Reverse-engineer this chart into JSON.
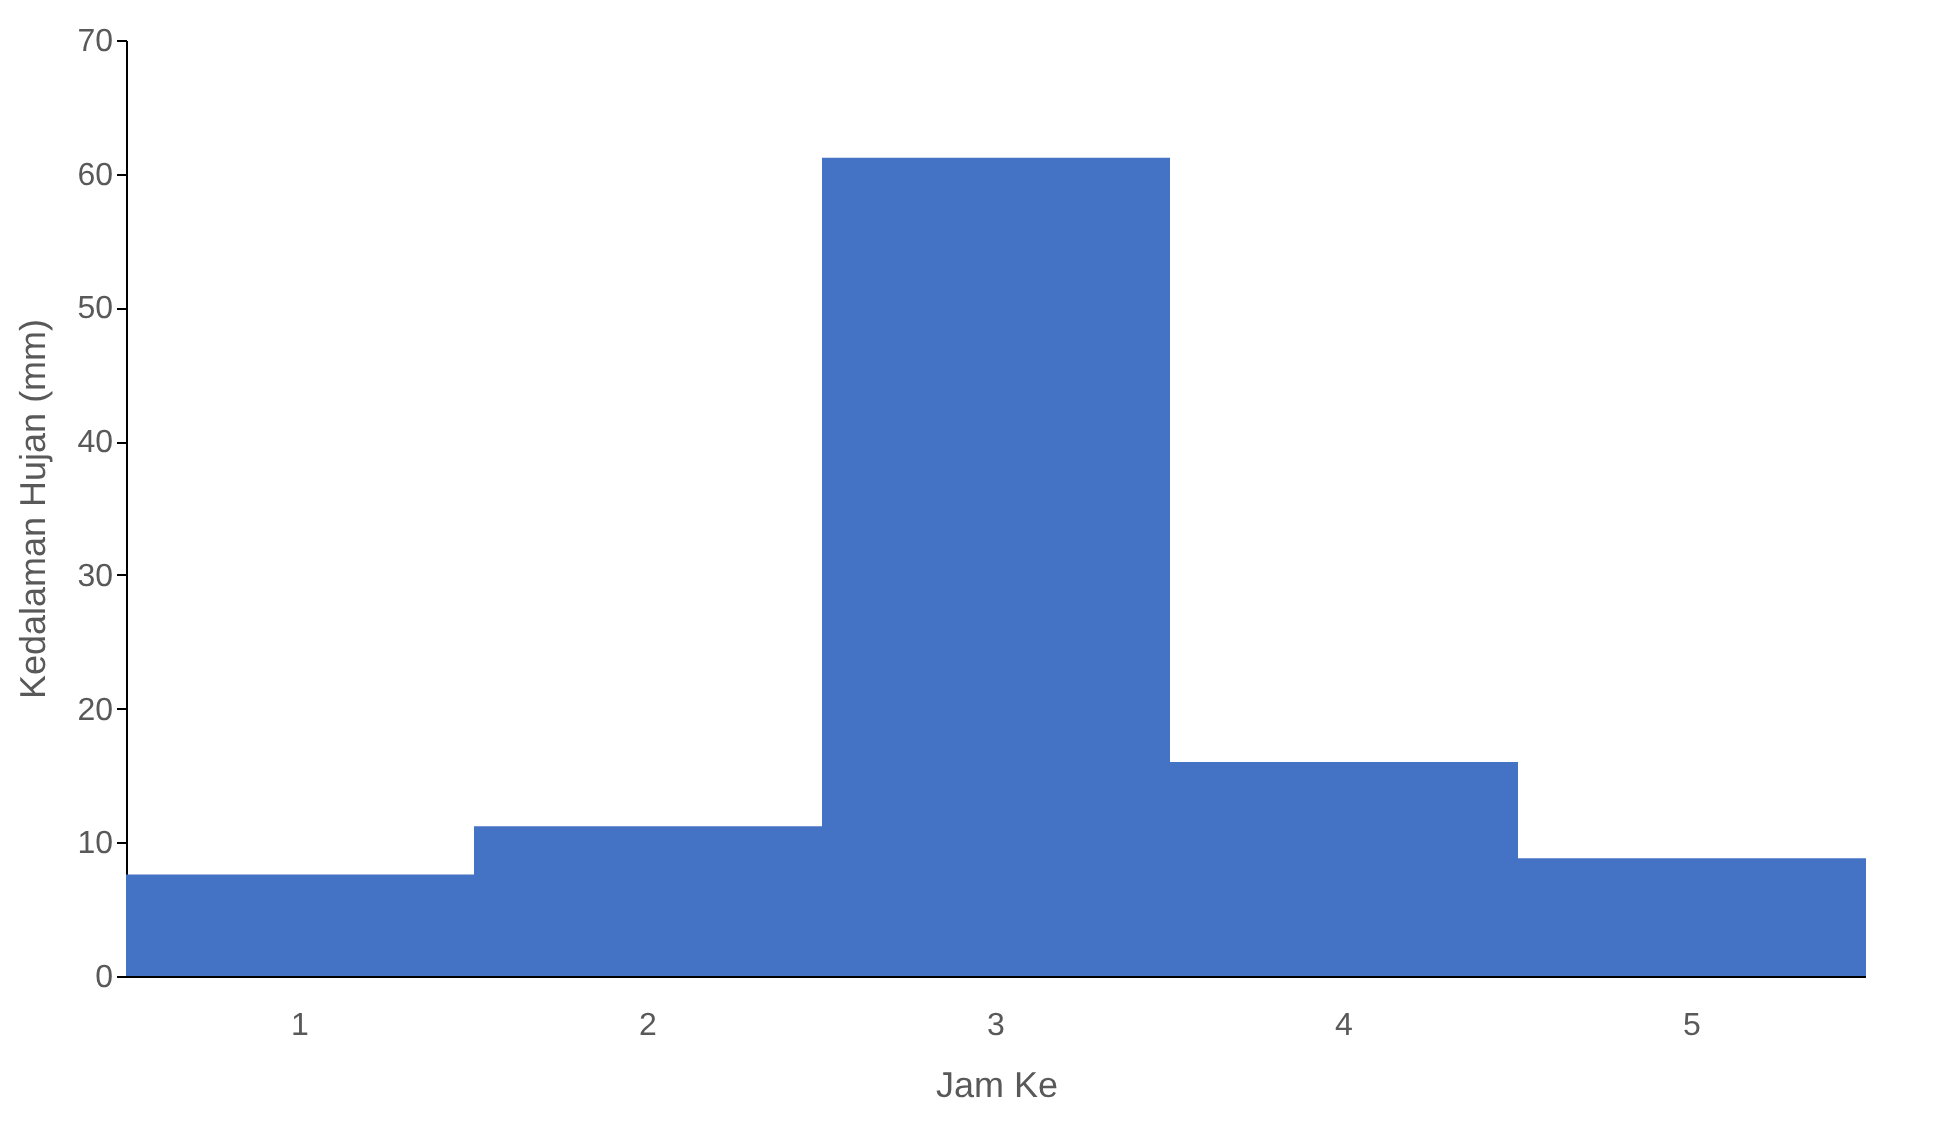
{
  "chart_data": {
    "type": "bar",
    "xlabel": "Jam Ke",
    "ylabel": "Kedalaman Hujan (mm)",
    "categories": [
      "1",
      "2",
      "3",
      "4",
      "5"
    ],
    "values": [
      7.6,
      11.2,
      61.2,
      16.0,
      8.8
    ],
    "color": "#4472c4",
    "ylim": [
      0,
      70
    ],
    "yticks": [
      0,
      10,
      20,
      30,
      40,
      50,
      60,
      70
    ],
    "grid": false
  }
}
